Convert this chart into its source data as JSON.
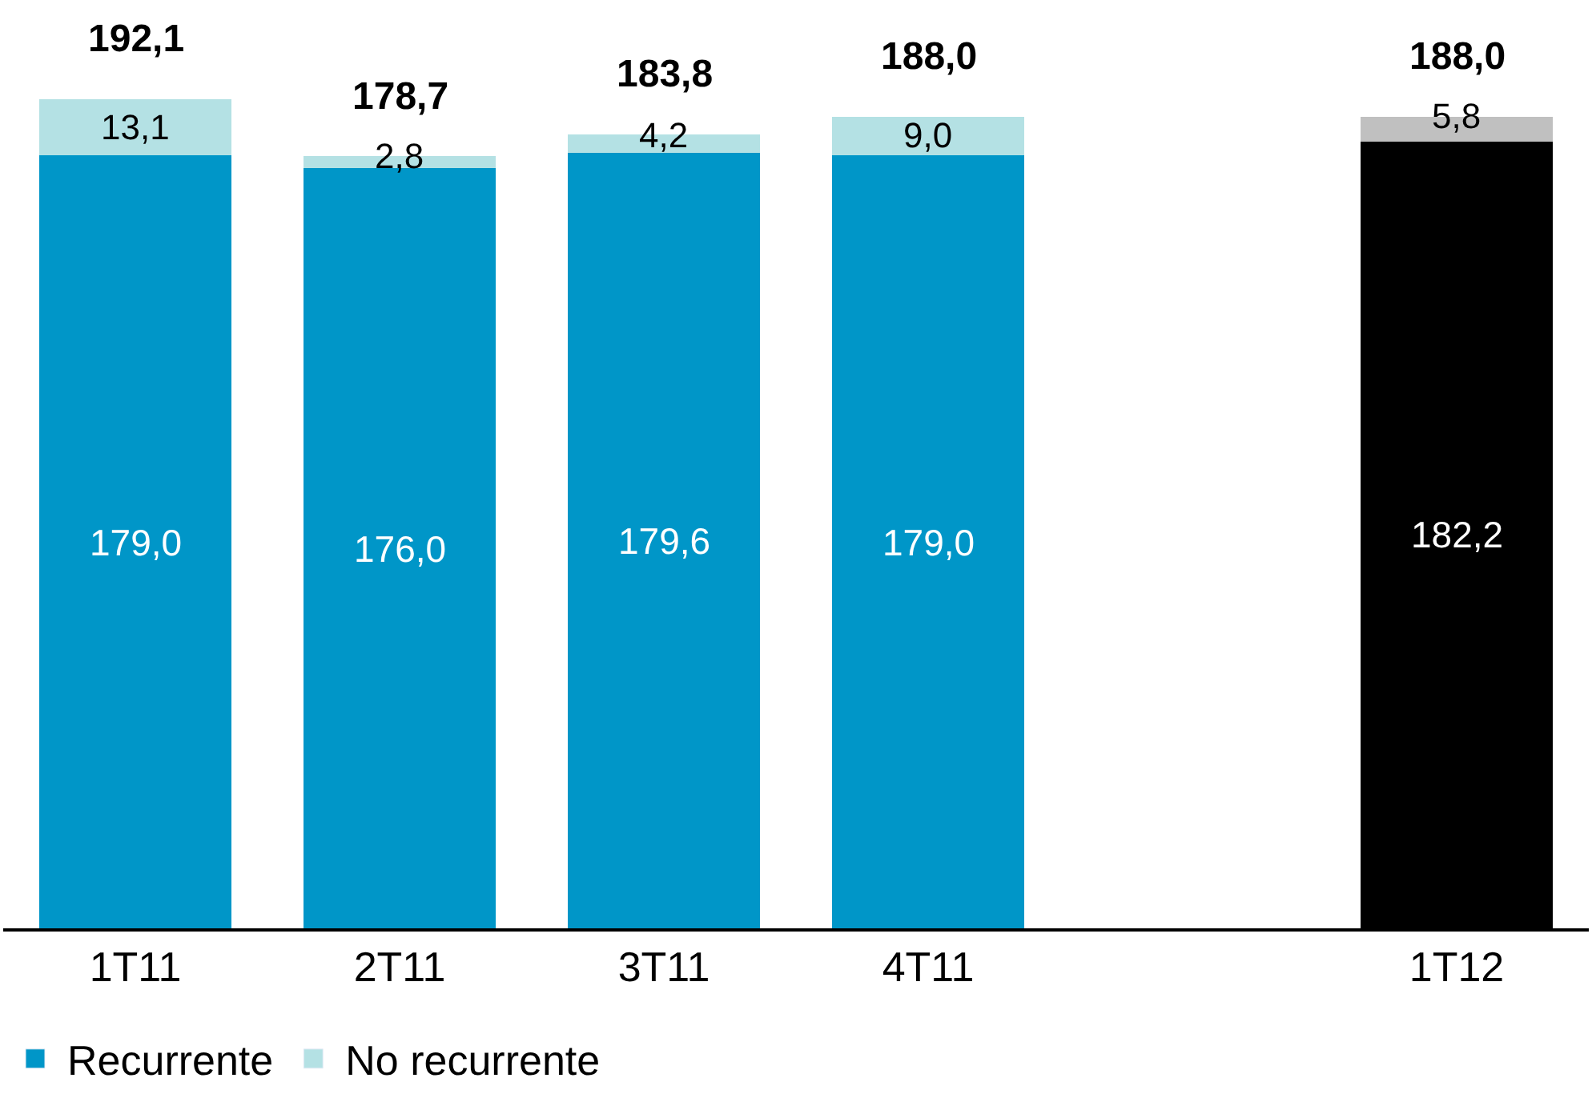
{
  "chart_data": {
    "type": "bar",
    "stacked": true,
    "categories": [
      "1T11",
      "2T11",
      "3T11",
      "4T11",
      null,
      "1T12"
    ],
    "series": [
      {
        "name": "Recurrente",
        "color": "#0096c8",
        "colors": [
          "#0096c8",
          "#0096c8",
          "#0096c8",
          "#0096c8",
          "#0096c8",
          "#000000"
        ],
        "values": [
          179.0,
          176.0,
          179.6,
          179.0,
          null,
          182.2
        ],
        "value_labels": [
          "179,0",
          "176,0",
          "179,6",
          "179,0",
          null,
          "182,2"
        ]
      },
      {
        "name": "No recurrente",
        "color": "#b4e1e4",
        "colors": [
          "#b4e1e4",
          "#b4e1e4",
          "#b4e1e4",
          "#b4e1e4",
          "#b4e1e4",
          "#c0c0c0"
        ],
        "values": [
          13.1,
          2.8,
          4.2,
          9.0,
          null,
          5.8
        ],
        "value_labels": [
          "13,1",
          "2,8",
          "4,2",
          "9,0",
          null,
          "5,8"
        ]
      }
    ],
    "totals": [
      "192,1",
      "178,7",
      "183,8",
      "188,0",
      null,
      "188,0"
    ],
    "ylim": [
      0,
      215
    ],
    "tick_labels": "x",
    "legend": "bottom left"
  }
}
